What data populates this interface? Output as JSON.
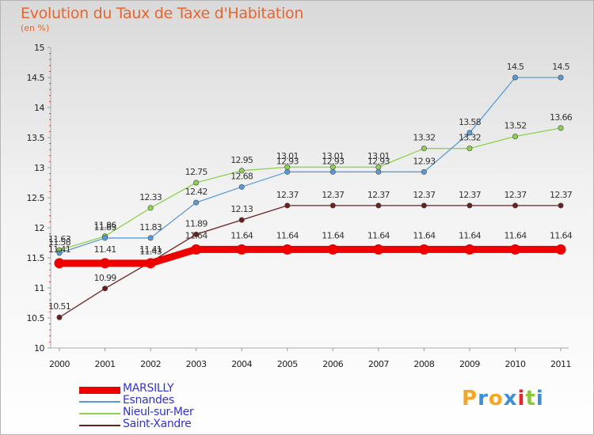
{
  "title": "Evolution du Taux de Taxe d'Habitation",
  "unit": "(en %)",
  "logo": {
    "letters": [
      "P",
      "r",
      "o",
      "x",
      "i",
      "t",
      "i"
    ],
    "colors": [
      "#f5a623",
      "#3a8fd6",
      "#f5a623",
      "#3a8fd6",
      "#e5262a",
      "#8dc63f",
      "#3a8fd6"
    ]
  },
  "chart_data": {
    "type": "line",
    "title": "Evolution du Taux de Taxe d'Habitation",
    "ylabel": "(en %)",
    "x": [
      "2000",
      "2001",
      "2002",
      "2003",
      "2004",
      "2005",
      "2006",
      "2007",
      "2008",
      "2009",
      "2010",
      "2011"
    ],
    "yticks": [
      "10",
      "10.5",
      "11",
      "11.5",
      "12",
      "12.5",
      "13",
      "13.5",
      "14",
      "14.5",
      "15"
    ],
    "ylim": [
      10,
      15
    ],
    "grid": false,
    "legend": "bottom-left",
    "series": [
      {
        "name": "MARSILLY",
        "color": "#ee0000",
        "values": [
          11.41,
          11.41,
          11.41,
          11.64,
          11.64,
          11.64,
          11.64,
          11.64,
          11.64,
          11.64,
          11.64,
          11.64
        ],
        "labels": [
          "11.41",
          "11.41",
          "11.41",
          "11.64",
          "11.64",
          "11.64",
          "11.64",
          "11.64",
          "11.64",
          "11.64",
          "11.64",
          "11.64"
        ]
      },
      {
        "name": "Esnandes",
        "color": "#5b9bd5",
        "values": [
          11.58,
          11.83,
          11.83,
          12.42,
          12.68,
          12.93,
          12.93,
          12.93,
          12.93,
          13.58,
          14.5,
          14.5
        ],
        "labels": [
          "11.58",
          "11.83",
          "11.83",
          "12.42",
          "12.68",
          "12.93",
          "12.93",
          "12.93",
          "12.93",
          "13.58",
          "14.5",
          "14.5"
        ]
      },
      {
        "name": "Nieul-sur-Mer",
        "color": "#8fd14f",
        "values": [
          11.63,
          11.86,
          12.33,
          12.75,
          12.95,
          13.01,
          13.01,
          13.01,
          13.32,
          13.32,
          13.52,
          13.66
        ],
        "labels": [
          "11.63",
          "11.86",
          "12.33",
          "12.75",
          "12.95",
          "13.01",
          "13.01",
          "13.01",
          "13.32",
          "13.32",
          "13.52",
          "13.66"
        ]
      },
      {
        "name": "Saint-Xandre",
        "color": "#6b2020",
        "values": [
          10.51,
          10.99,
          11.43,
          11.89,
          12.13,
          12.37,
          12.37,
          12.37,
          12.37,
          12.37,
          12.37,
          12.37
        ],
        "labels": [
          "10.51",
          "10.99",
          "11.43",
          "11.89",
          "12.13",
          "12.37",
          "12.37",
          "12.37",
          "12.37",
          "12.37",
          "12.37",
          "12.37"
        ]
      }
    ]
  }
}
